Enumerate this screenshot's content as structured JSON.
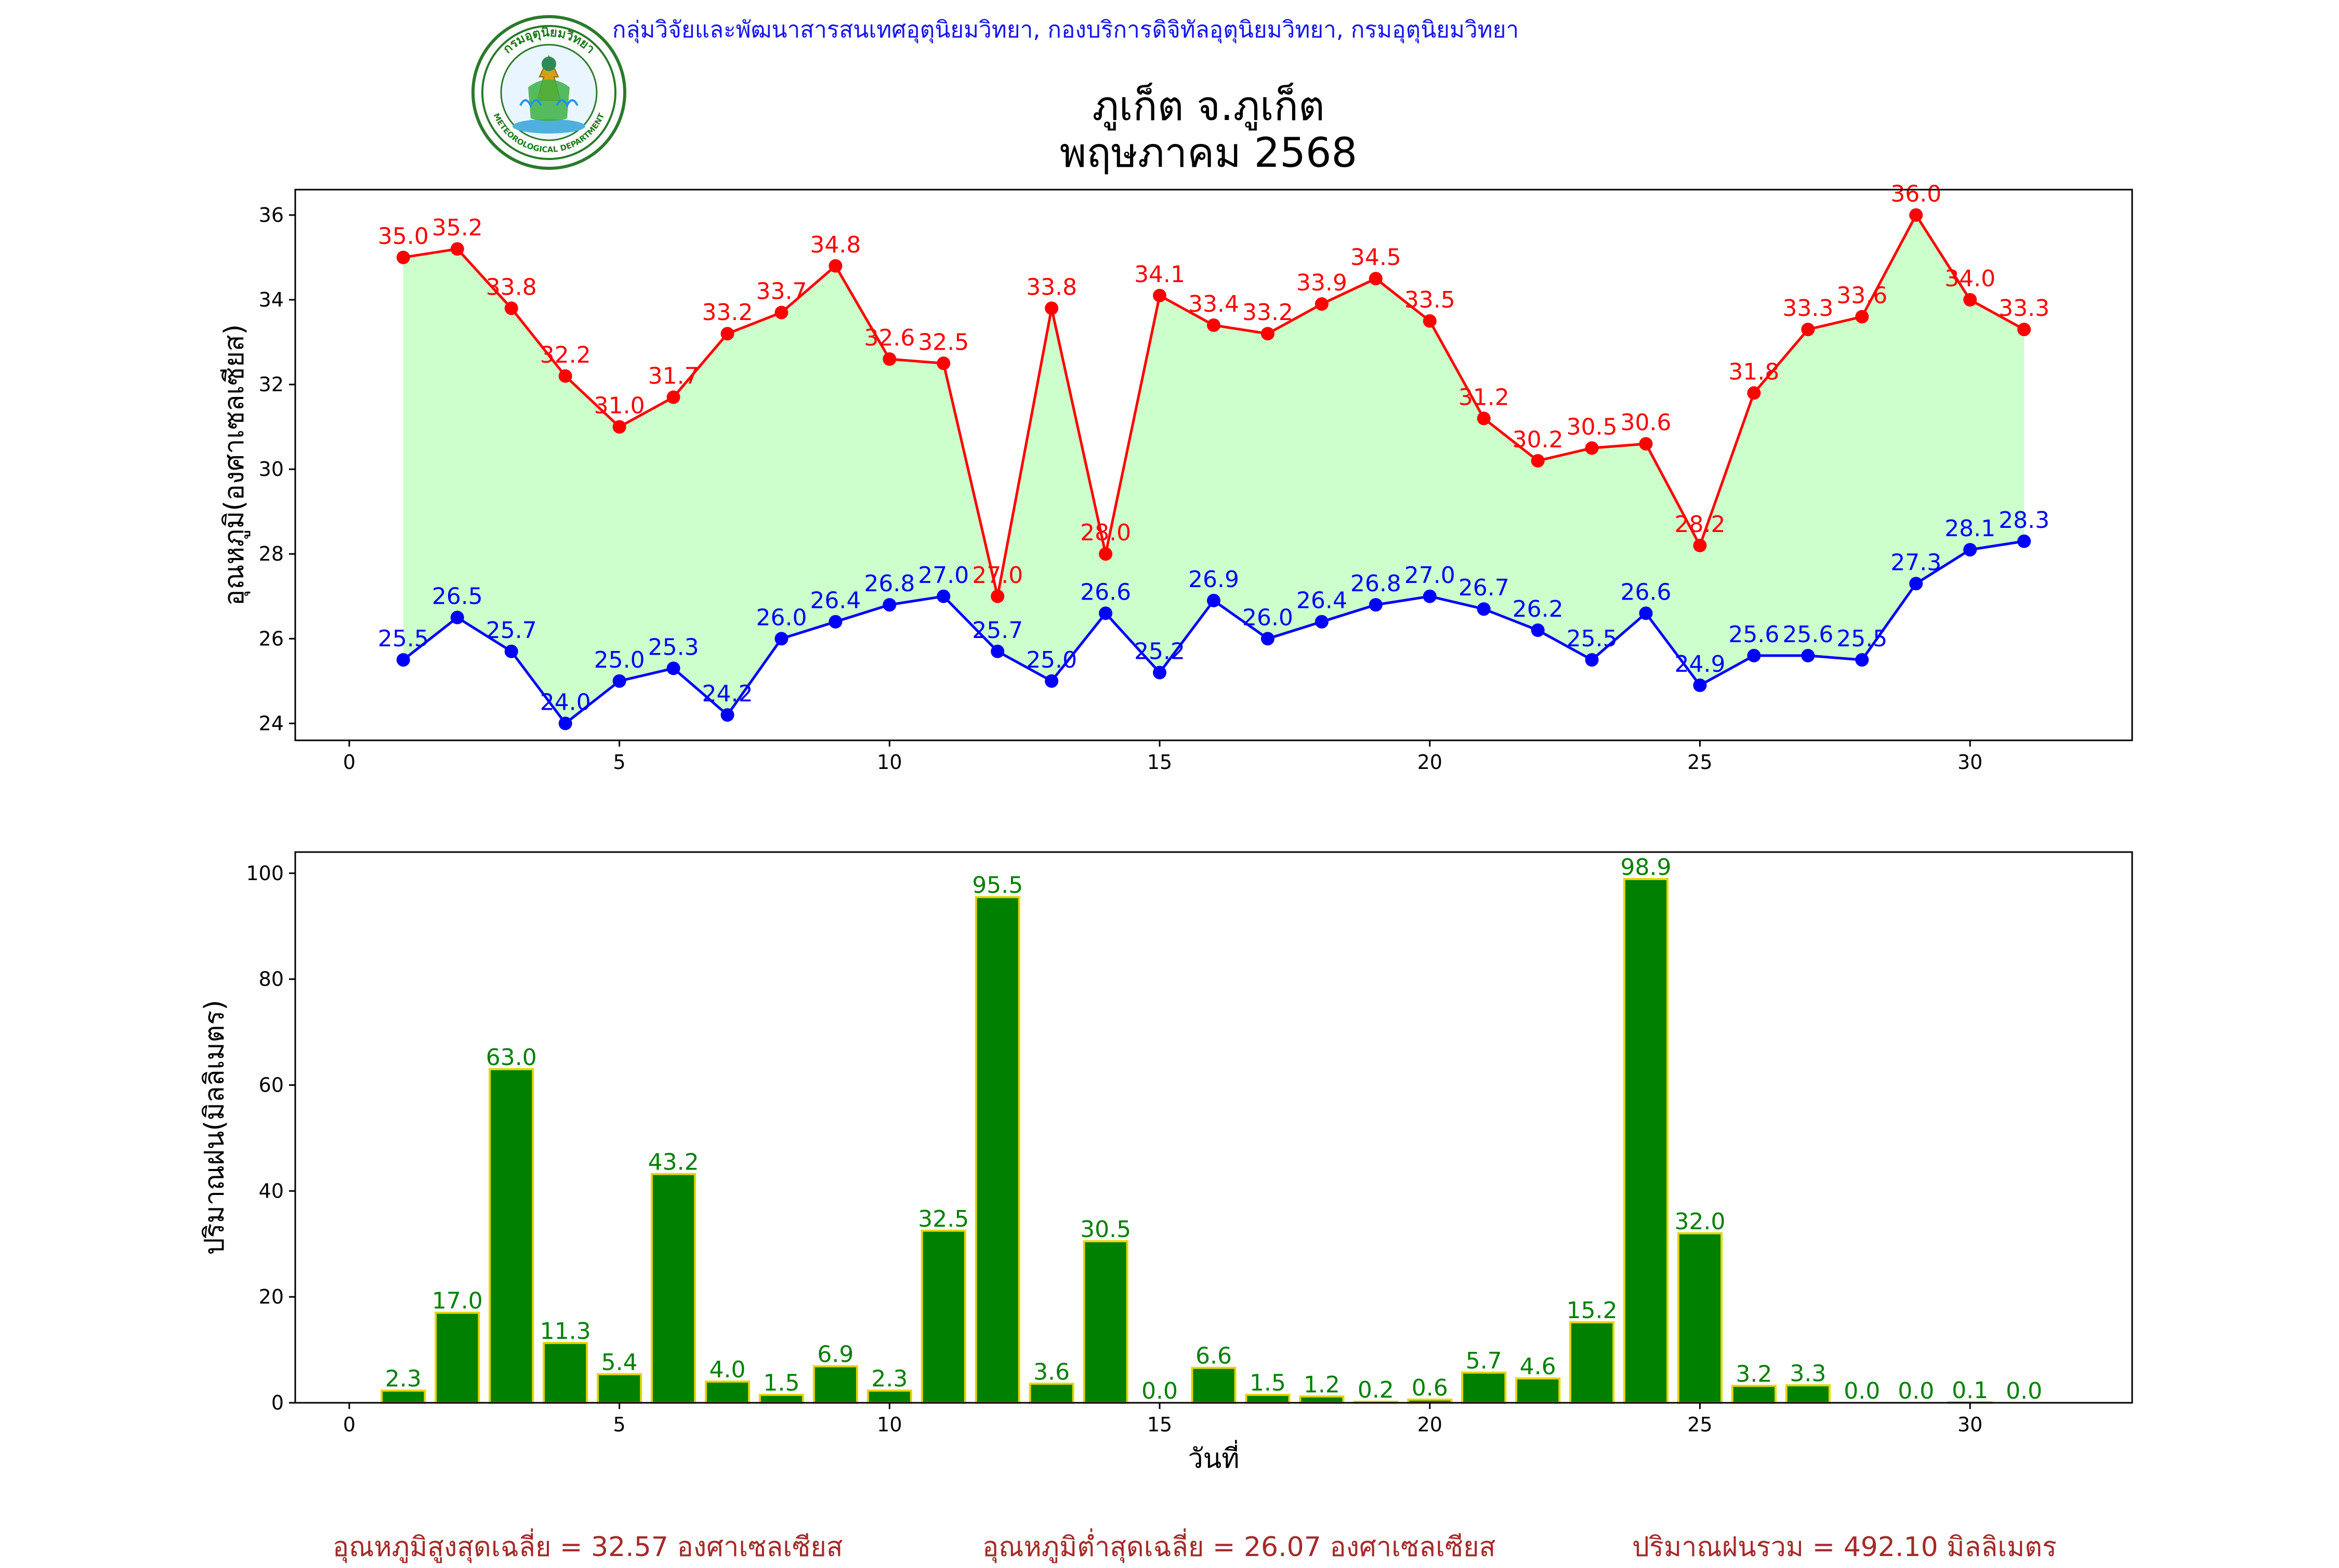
{
  "header": {
    "org_line": "กลุ่มวิจัยและพัฒนาสารสนเทศอุตุนิยมวิทยา, กองบริการดิจิทัลอุตุนิยมวิทยา, กรมอุตุนิยมวิทยา",
    "title_line1": "ภูเก็ต จ.ภูเก็ต",
    "title_line2": "พฤษภาคม 2568",
    "logo_text_top": "กรมอุตุนิยมวิทยา",
    "logo_text_bottom": "METEOROLOGICAL DEPARTMENT"
  },
  "colors": {
    "max_line": "#ff0000",
    "min_line": "#0000ff",
    "fill": "#ccffcc",
    "bar_fill": "#008000",
    "bar_edge": "#e6d600",
    "summary_text": "#a52a2a",
    "header_text": "#1515f0"
  },
  "chart_data": [
    {
      "type": "line",
      "ylabel": "อุณหภูมิ(องศาเซลเซียส)",
      "xlabel": "",
      "xlim": [
        -1,
        33
      ],
      "ylim": [
        23.6,
        36.6
      ],
      "xticks": [
        0,
        5,
        10,
        15,
        20,
        25,
        30
      ],
      "yticks": [
        24,
        26,
        28,
        30,
        32,
        34,
        36
      ],
      "x": [
        1,
        2,
        3,
        4,
        5,
        6,
        7,
        8,
        9,
        10,
        11,
        12,
        13,
        14,
        15,
        16,
        17,
        18,
        19,
        20,
        21,
        22,
        23,
        24,
        25,
        26,
        27,
        28,
        29,
        30,
        31
      ],
      "series": [
        {
          "key": "max",
          "values": [
            35.0,
            35.2,
            33.8,
            32.2,
            31.0,
            31.7,
            33.2,
            33.7,
            34.8,
            32.6,
            32.5,
            27.0,
            33.8,
            28.0,
            34.1,
            33.4,
            33.2,
            33.9,
            34.5,
            33.5,
            31.2,
            30.2,
            30.5,
            30.6,
            28.2,
            31.8,
            33.3,
            33.6,
            36.0,
            34.0,
            33.3
          ]
        },
        {
          "key": "min",
          "values": [
            25.5,
            26.5,
            25.7,
            24.0,
            25.0,
            25.3,
            24.2,
            26.0,
            26.4,
            26.8,
            27.0,
            25.7,
            25.0,
            26.6,
            25.2,
            26.9,
            26.0,
            26.4,
            26.8,
            27.0,
            26.7,
            26.2,
            25.5,
            26.6,
            24.9,
            25.6,
            25.6,
            25.5,
            27.3,
            28.1,
            28.3
          ]
        }
      ]
    },
    {
      "type": "bar",
      "ylabel": "ปริมาณฝน(มิลลิเมตร)",
      "xlabel": "วันที่",
      "xlim": [
        -1,
        33
      ],
      "ylim": [
        0,
        104
      ],
      "xticks": [
        0,
        5,
        10,
        15,
        20,
        25,
        30
      ],
      "yticks": [
        0,
        20,
        40,
        60,
        80,
        100
      ],
      "x": [
        1,
        2,
        3,
        4,
        5,
        6,
        7,
        8,
        9,
        10,
        11,
        12,
        13,
        14,
        15,
        16,
        17,
        18,
        19,
        20,
        21,
        22,
        23,
        24,
        25,
        26,
        27,
        28,
        29,
        30,
        31
      ],
      "values": [
        2.3,
        17.0,
        63.0,
        11.3,
        5.4,
        43.2,
        4.0,
        1.5,
        6.9,
        2.3,
        32.5,
        95.5,
        3.6,
        30.5,
        0.0,
        6.6,
        1.5,
        1.2,
        0.2,
        0.6,
        5.7,
        4.6,
        15.2,
        98.9,
        32.0,
        3.2,
        3.3,
        0.0,
        0.0,
        0.1,
        0.0
      ]
    }
  ],
  "summary": {
    "avg_max": "อุณหภูมิสูงสุดเฉลี่ย = 32.57 องศาเซลเซียส",
    "avg_min": "อุณหภูมิต่ำสุดเฉลี่ย = 26.07 องศาเซลเซียส",
    "total_rain": "ปริมาณฝนรวม = 492.10 มิลลิเมตร"
  }
}
